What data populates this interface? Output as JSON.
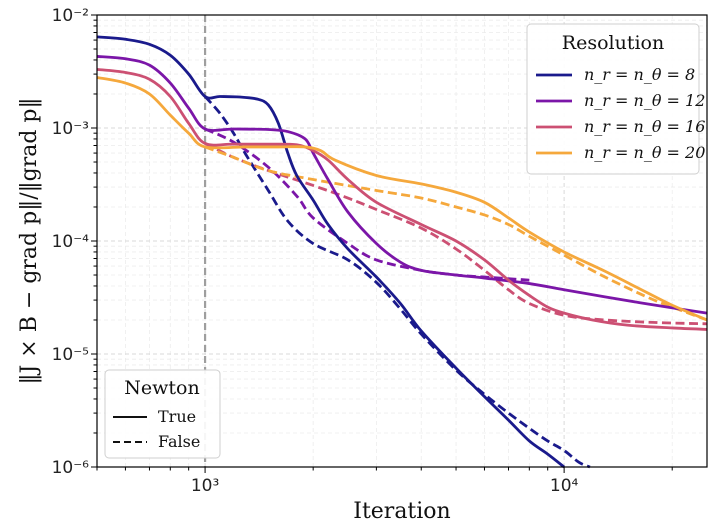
{
  "chart_data": {
    "type": "line",
    "xlabel": "Iteration",
    "ylabel": "‖J × B − grad p‖/‖grad p‖",
    "xscale": "log",
    "yscale": "log",
    "xlim": [
      500,
      25000
    ],
    "ylim": [
      1e-06,
      0.01
    ],
    "x_ticks": [
      "10³",
      "10⁴"
    ],
    "y_ticks": [
      "10⁻⁶",
      "10⁻⁵",
      "10⁻⁴",
      "10⁻³",
      "10⁻²"
    ],
    "grid": "on (major and minor, light dashed)",
    "vline": {
      "x": 1000,
      "style": "dashed",
      "color": "#9e9e9e"
    },
    "legend_resolution": {
      "title": "Resolution",
      "placement": "top-right",
      "entries": [
        "n_r = n_θ = 8",
        "n_r = n_θ = 12",
        "n_r = n_θ = 16",
        "n_r = n_θ = 20"
      ]
    },
    "legend_newton": {
      "title": "Newton",
      "placement": "bottom-left",
      "entries": [
        "True",
        "False"
      ]
    },
    "series": [
      {
        "name": "n_r = n_θ = 8",
        "newton": "True",
        "color": "#1a1a8c",
        "points": [
          [
            500,
            0.0064
          ],
          [
            600,
            0.0061
          ],
          [
            700,
            0.0055
          ],
          [
            800,
            0.0044
          ],
          [
            900,
            0.003
          ],
          [
            1000,
            0.0019
          ],
          [
            1100,
            0.0019
          ],
          [
            1250,
            0.00188
          ],
          [
            1400,
            0.0018
          ],
          [
            1500,
            0.0016
          ],
          [
            1600,
            0.0011
          ],
          [
            1700,
            0.0006
          ],
          [
            1800,
            0.00038
          ],
          [
            2000,
            0.00023
          ],
          [
            2200,
            0.00014
          ],
          [
            2500,
            8.5e-05
          ],
          [
            3000,
            4.8e-05
          ],
          [
            3500,
            2.8e-05
          ],
          [
            4000,
            1.6e-05
          ],
          [
            5000,
            7.5e-06
          ],
          [
            6000,
            4.2e-06
          ],
          [
            7000,
            2.6e-06
          ],
          [
            8000,
            1.7e-06
          ],
          [
            9000,
            1.3e-06
          ],
          [
            10000,
            1e-06
          ]
        ]
      },
      {
        "name": "n_r = n_θ = 8",
        "newton": "False",
        "color": "#1a1a8c",
        "points": [
          [
            1000,
            0.0019
          ],
          [
            1100,
            0.00135
          ],
          [
            1200,
            0.0009
          ],
          [
            1300,
            0.00058
          ],
          [
            1500,
            0.00028
          ],
          [
            1700,
            0.00015
          ],
          [
            2000,
            9.5e-05
          ],
          [
            2500,
            6.8e-05
          ],
          [
            3000,
            4.3e-05
          ],
          [
            3500,
            2.5e-05
          ],
          [
            4000,
            1.5e-05
          ],
          [
            5000,
            7.2e-06
          ],
          [
            6000,
            4.4e-06
          ],
          [
            7000,
            3e-06
          ],
          [
            8000,
            2.2e-06
          ],
          [
            9000,
            1.7e-06
          ],
          [
            10000,
            1.4e-06
          ],
          [
            11000,
            1.1e-06
          ],
          [
            11800,
            1e-06
          ]
        ]
      },
      {
        "name": "n_r = n_θ = 12",
        "newton": "True",
        "color": "#7b16a8",
        "points": [
          [
            500,
            0.0043
          ],
          [
            600,
            0.0041
          ],
          [
            700,
            0.0036
          ],
          [
            800,
            0.0025
          ],
          [
            900,
            0.0015
          ],
          [
            1000,
            0.00098
          ],
          [
            1200,
            0.00098
          ],
          [
            1500,
            0.00097
          ],
          [
            1700,
            0.00093
          ],
          [
            1900,
            0.0008
          ],
          [
            2000,
            0.0006
          ],
          [
            2200,
            0.00035
          ],
          [
            2500,
            0.00018
          ],
          [
            3000,
            9.5e-05
          ],
          [
            3500,
            6.5e-05
          ],
          [
            4000,
            5.5e-05
          ],
          [
            5000,
            5e-05
          ],
          [
            6000,
            4.7e-05
          ],
          [
            8000,
            4.2e-05
          ],
          [
            10000,
            3.7e-05
          ],
          [
            13000,
            3.2e-05
          ],
          [
            18000,
            2.7e-05
          ],
          [
            25000,
            2.3e-05
          ]
        ]
      },
      {
        "name": "n_r = n_θ = 12",
        "newton": "False",
        "color": "#7b16a8",
        "points": [
          [
            1000,
            0.00098
          ],
          [
            1200,
            0.00075
          ],
          [
            1500,
            0.00045
          ],
          [
            1800,
            0.00025
          ],
          [
            2000,
            0.00016
          ],
          [
            2500,
            9.5e-05
          ],
          [
            3000,
            6.8e-05
          ],
          [
            4000,
            5.5e-05
          ],
          [
            5000,
            5e-05
          ],
          [
            6000,
            4.8e-05
          ],
          [
            8000,
            4.5e-05
          ]
        ]
      },
      {
        "name": "n_r = n_θ = 16",
        "newton": "True",
        "color": "#cc5073",
        "points": [
          [
            500,
            0.0033
          ],
          [
            600,
            0.0031
          ],
          [
            700,
            0.0027
          ],
          [
            800,
            0.0019
          ],
          [
            900,
            0.0011
          ],
          [
            1000,
            0.00073
          ],
          [
            1200,
            0.00072
          ],
          [
            1500,
            0.00072
          ],
          [
            1800,
            0.00071
          ],
          [
            2000,
            0.00063
          ],
          [
            2200,
            0.00052
          ],
          [
            2500,
            0.00035
          ],
          [
            3000,
            0.00022
          ],
          [
            4000,
            0.00014
          ],
          [
            5000,
            0.0001
          ],
          [
            6000,
            6.8e-05
          ],
          [
            7000,
            4.5e-05
          ],
          [
            8000,
            3.3e-05
          ],
          [
            9000,
            2.6e-05
          ],
          [
            10000,
            2.3e-05
          ],
          [
            12000,
            2e-05
          ],
          [
            15000,
            1.8e-05
          ],
          [
            20000,
            1.7e-05
          ],
          [
            25000,
            1.65e-05
          ]
        ]
      },
      {
        "name": "n_r = n_θ = 16",
        "newton": "False",
        "color": "#cc5073",
        "points": [
          [
            1000,
            0.00073
          ],
          [
            1200,
            0.00055
          ],
          [
            1500,
            0.00042
          ],
          [
            2000,
            0.00031
          ],
          [
            2500,
            0.00024
          ],
          [
            3000,
            0.00019
          ],
          [
            4000,
            0.00013
          ],
          [
            5000,
            8.5e-05
          ],
          [
            6000,
            5.5e-05
          ],
          [
            7000,
            3.7e-05
          ],
          [
            8000,
            2.8e-05
          ],
          [
            10000,
            2.2e-05
          ],
          [
            13000,
            2e-05
          ],
          [
            18000,
            1.9e-05
          ],
          [
            25000,
            1.85e-05
          ]
        ]
      },
      {
        "name": "n_r = n_θ = 20",
        "newton": "True",
        "color": "#f5a83c",
        "points": [
          [
            500,
            0.0028
          ],
          [
            600,
            0.0025
          ],
          [
            700,
            0.002
          ],
          [
            800,
            0.0013
          ],
          [
            900,
            0.0009
          ],
          [
            1000,
            0.00068
          ],
          [
            1300,
            0.00068
          ],
          [
            1600,
            0.00068
          ],
          [
            1900,
            0.00068
          ],
          [
            2100,
            0.00063
          ],
          [
            2300,
            0.00052
          ],
          [
            3000,
            0.00038
          ],
          [
            4000,
            0.00032
          ],
          [
            5000,
            0.00027
          ],
          [
            6000,
            0.00022
          ],
          [
            7000,
            0.00016
          ],
          [
            8000,
            0.00012
          ],
          [
            10000,
            8e-05
          ],
          [
            13000,
            5.4e-05
          ],
          [
            17000,
            3.5e-05
          ],
          [
            20000,
            2.7e-05
          ],
          [
            25000,
            2e-05
          ]
        ]
      },
      {
        "name": "n_r = n_θ = 20",
        "newton": "False",
        "color": "#f5a83c",
        "points": [
          [
            1000,
            0.00068
          ],
          [
            1200,
            0.00055
          ],
          [
            1500,
            0.00042
          ],
          [
            2000,
            0.00035
          ],
          [
            3000,
            0.00028
          ],
          [
            4000,
            0.00024
          ],
          [
            5000,
            0.0002
          ],
          [
            6000,
            0.00017
          ],
          [
            7000,
            0.00014
          ],
          [
            8000,
            0.00011
          ],
          [
            10000,
            7.5e-05
          ],
          [
            13000,
            4.8e-05
          ],
          [
            17000,
            3.2e-05
          ],
          [
            20000,
            2.6e-05
          ],
          [
            25000,
            2e-05
          ]
        ]
      }
    ]
  }
}
